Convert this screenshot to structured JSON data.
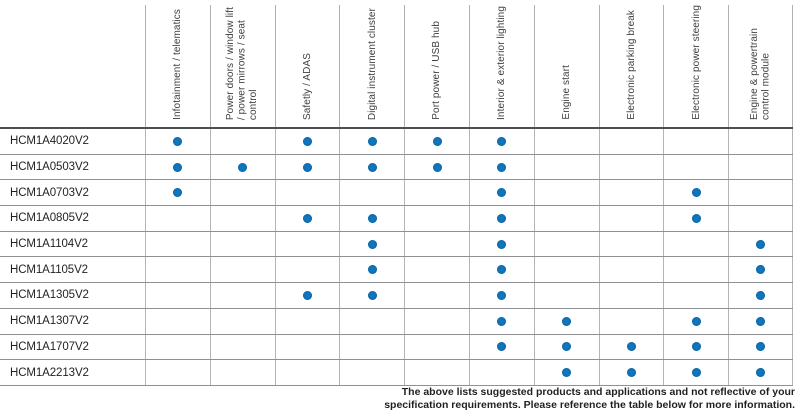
{
  "colors": {
    "dot": "#1176bd",
    "header_text": "#414042",
    "row_label_text": "#231f20",
    "grid_vertical": "#b3b6b9",
    "grid_horizontal": "#8e9093",
    "header_separator": "#4d4f52"
  },
  "table": {
    "description_marker": "filled-dot-icon",
    "columns": [
      {
        "lines": [
          "Infotainment / telematics"
        ]
      },
      {
        "lines": [
          "Power doors / window lift",
          "/ power mirrows / seat",
          "control"
        ]
      },
      {
        "lines": [
          "Safetly / ADAS"
        ]
      },
      {
        "lines": [
          "Digital instrument cluster"
        ]
      },
      {
        "lines": [
          "Port power / USB hub"
        ]
      },
      {
        "lines": [
          "Interior & exterior lighting"
        ]
      },
      {
        "lines": [
          "Engine start"
        ]
      },
      {
        "lines": [
          "Electronic parking break"
        ]
      },
      {
        "lines": [
          "Electronic power steering"
        ]
      },
      {
        "lines": [
          "Engine & powertrain",
          "control module"
        ]
      }
    ],
    "rows": [
      {
        "label": "HCM1A4020V2",
        "dots": [
          1,
          3,
          4,
          5,
          6
        ]
      },
      {
        "label": "HCM1A0503V2",
        "dots": [
          1,
          2,
          3,
          4,
          5,
          6
        ]
      },
      {
        "label": "HCM1A0703V2",
        "dots": [
          1,
          6,
          9
        ]
      },
      {
        "label": "HCM1A0805V2",
        "dots": [
          3,
          4,
          6,
          9
        ]
      },
      {
        "label": "HCM1A1104V2",
        "dots": [
          4,
          6,
          10
        ]
      },
      {
        "label": "HCM1A1105V2",
        "dots": [
          4,
          6,
          10
        ]
      },
      {
        "label": "HCM1A1305V2",
        "dots": [
          3,
          4,
          6,
          10
        ]
      },
      {
        "label": "HCM1A1307V2",
        "dots": [
          6,
          7,
          9,
          10
        ]
      },
      {
        "label": "HCM1A1707V2",
        "dots": [
          6,
          7,
          8,
          9,
          10
        ]
      },
      {
        "label": "HCM1A2213V2",
        "dots": [
          7,
          8,
          9,
          10
        ]
      }
    ]
  },
  "footer": {
    "lines": [
      "The above lists suggested products and applications and not reflective of your",
      "specification requirements. Please reference the table below for more information."
    ]
  }
}
